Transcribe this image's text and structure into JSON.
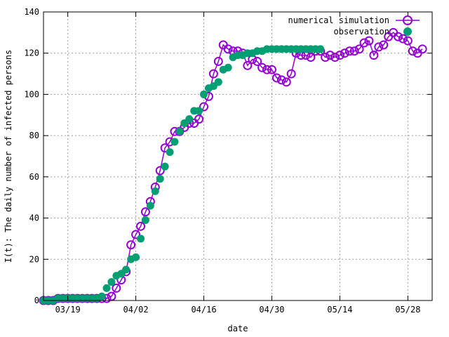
{
  "chart_data": {
    "type": "scatter",
    "xlabel": "date",
    "ylabel": "I(t): The daily number of infected persons",
    "x_range": [
      "2020-03-14",
      "2020-06-02"
    ],
    "ylim": [
      0,
      140
    ],
    "yticks": [
      0,
      20,
      40,
      60,
      80,
      100,
      120,
      140
    ],
    "xticks": [
      {
        "date": "2020-03-19",
        "label": "03/19"
      },
      {
        "date": "2020-04-02",
        "label": "04/02"
      },
      {
        "date": "2020-04-16",
        "label": "04/16"
      },
      {
        "date": "2020-04-30",
        "label": "04/30"
      },
      {
        "date": "2020-05-14",
        "label": "05/14"
      },
      {
        "date": "2020-05-28",
        "label": "05/28"
      }
    ],
    "grid": true,
    "legend_position": "top-right",
    "series": [
      {
        "name": "numerical simulation",
        "style": "line-with-open-circles",
        "color": "#9400d3",
        "points": [
          [
            "2020-03-14",
            0
          ],
          [
            "2020-03-15",
            0
          ],
          [
            "2020-03-16",
            0
          ],
          [
            "2020-03-17",
            1
          ],
          [
            "2020-03-18",
            1
          ],
          [
            "2020-03-19",
            1
          ],
          [
            "2020-03-20",
            1
          ],
          [
            "2020-03-21",
            1
          ],
          [
            "2020-03-22",
            1
          ],
          [
            "2020-03-23",
            1
          ],
          [
            "2020-03-24",
            1
          ],
          [
            "2020-03-25",
            1
          ],
          [
            "2020-03-26",
            1
          ],
          [
            "2020-03-27",
            1
          ],
          [
            "2020-03-28",
            2
          ],
          [
            "2020-03-29",
            6
          ],
          [
            "2020-03-30",
            10
          ],
          [
            "2020-03-31",
            14
          ],
          [
            "2020-04-01",
            27
          ],
          [
            "2020-04-02",
            32
          ],
          [
            "2020-04-03",
            36
          ],
          [
            "2020-04-04",
            43
          ],
          [
            "2020-04-05",
            48
          ],
          [
            "2020-04-06",
            55
          ],
          [
            "2020-04-07",
            63
          ],
          [
            "2020-04-08",
            74
          ],
          [
            "2020-04-09",
            77
          ],
          [
            "2020-04-10",
            82
          ],
          [
            "2020-04-11",
            82
          ],
          [
            "2020-04-12",
            84
          ],
          [
            "2020-04-13",
            86
          ],
          [
            "2020-04-14",
            86
          ],
          [
            "2020-04-15",
            88
          ],
          [
            "2020-04-16",
            94
          ],
          [
            "2020-04-17",
            99
          ],
          [
            "2020-04-18",
            110
          ],
          [
            "2020-04-19",
            116
          ],
          [
            "2020-04-20",
            124
          ],
          [
            "2020-04-21",
            122
          ],
          [
            "2020-04-22",
            121
          ],
          [
            "2020-04-23",
            121
          ],
          [
            "2020-04-24",
            120
          ],
          [
            "2020-04-25",
            114
          ],
          [
            "2020-04-26",
            117
          ],
          [
            "2020-04-27",
            116
          ],
          [
            "2020-04-28",
            113
          ],
          [
            "2020-04-29",
            112
          ],
          [
            "2020-04-30",
            112
          ],
          [
            "2020-05-01",
            108
          ],
          [
            "2020-05-02",
            107
          ],
          [
            "2020-05-03",
            106
          ],
          [
            "2020-05-04",
            110
          ],
          [
            "2020-05-05",
            120
          ],
          [
            "2020-05-06",
            119
          ],
          [
            "2020-05-07",
            119
          ],
          [
            "2020-05-08",
            118
          ],
          [
            "2020-05-09",
            121
          ],
          [
            "2020-05-10",
            121
          ],
          [
            "2020-05-11",
            118
          ],
          [
            "2020-05-12",
            119
          ],
          [
            "2020-05-13",
            118
          ],
          [
            "2020-05-14",
            119
          ],
          [
            "2020-05-15",
            120
          ],
          [
            "2020-05-16",
            121
          ],
          [
            "2020-05-17",
            121
          ],
          [
            "2020-05-18",
            122
          ],
          [
            "2020-05-19",
            125
          ],
          [
            "2020-05-20",
            126
          ],
          [
            "2020-05-21",
            119
          ],
          [
            "2020-05-22",
            123
          ],
          [
            "2020-05-23",
            124
          ],
          [
            "2020-05-24",
            128
          ],
          [
            "2020-05-25",
            130
          ],
          [
            "2020-05-26",
            128
          ],
          [
            "2020-05-27",
            127
          ],
          [
            "2020-05-28",
            126
          ],
          [
            "2020-05-29",
            121
          ],
          [
            "2020-05-30",
            120
          ],
          [
            "2020-05-31",
            122
          ]
        ]
      },
      {
        "name": "observation",
        "style": "filled-circles",
        "color": "#009e73",
        "points": [
          [
            "2020-03-14",
            0
          ],
          [
            "2020-03-15",
            0
          ],
          [
            "2020-03-16",
            0
          ],
          [
            "2020-03-17",
            1
          ],
          [
            "2020-03-18",
            1
          ],
          [
            "2020-03-19",
            1
          ],
          [
            "2020-03-20",
            1
          ],
          [
            "2020-03-21",
            1
          ],
          [
            "2020-03-22",
            1
          ],
          [
            "2020-03-23",
            1
          ],
          [
            "2020-03-24",
            1
          ],
          [
            "2020-03-25",
            1
          ],
          [
            "2020-03-26",
            2
          ],
          [
            "2020-03-27",
            6
          ],
          [
            "2020-03-28",
            9
          ],
          [
            "2020-03-29",
            12
          ],
          [
            "2020-03-30",
            13
          ],
          [
            "2020-03-31",
            15
          ],
          [
            "2020-04-01",
            20
          ],
          [
            "2020-04-02",
            21
          ],
          [
            "2020-04-03",
            30
          ],
          [
            "2020-04-04",
            39
          ],
          [
            "2020-04-05",
            46
          ],
          [
            "2020-04-06",
            53
          ],
          [
            "2020-04-07",
            59
          ],
          [
            "2020-04-08",
            65
          ],
          [
            "2020-04-09",
            72
          ],
          [
            "2020-04-10",
            77
          ],
          [
            "2020-04-11",
            82
          ],
          [
            "2020-04-12",
            86
          ],
          [
            "2020-04-13",
            88
          ],
          [
            "2020-04-14",
            92
          ],
          [
            "2020-04-15",
            92
          ],
          [
            "2020-04-16",
            100
          ],
          [
            "2020-04-17",
            103
          ],
          [
            "2020-04-18",
            104
          ],
          [
            "2020-04-19",
            106
          ],
          [
            "2020-04-20",
            112
          ],
          [
            "2020-04-21",
            113
          ],
          [
            "2020-04-22",
            118
          ],
          [
            "2020-04-23",
            119
          ],
          [
            "2020-04-24",
            119
          ],
          [
            "2020-04-25",
            120
          ],
          [
            "2020-04-26",
            120
          ],
          [
            "2020-04-27",
            121
          ],
          [
            "2020-04-28",
            121
          ],
          [
            "2020-04-29",
            122
          ],
          [
            "2020-04-30",
            122
          ],
          [
            "2020-05-01",
            122
          ],
          [
            "2020-05-02",
            122
          ],
          [
            "2020-05-03",
            122
          ],
          [
            "2020-05-04",
            122
          ],
          [
            "2020-05-05",
            122
          ],
          [
            "2020-05-06",
            122
          ],
          [
            "2020-05-07",
            122
          ],
          [
            "2020-05-08",
            122
          ],
          [
            "2020-05-09",
            122
          ],
          [
            "2020-05-10",
            122
          ]
        ]
      }
    ]
  }
}
